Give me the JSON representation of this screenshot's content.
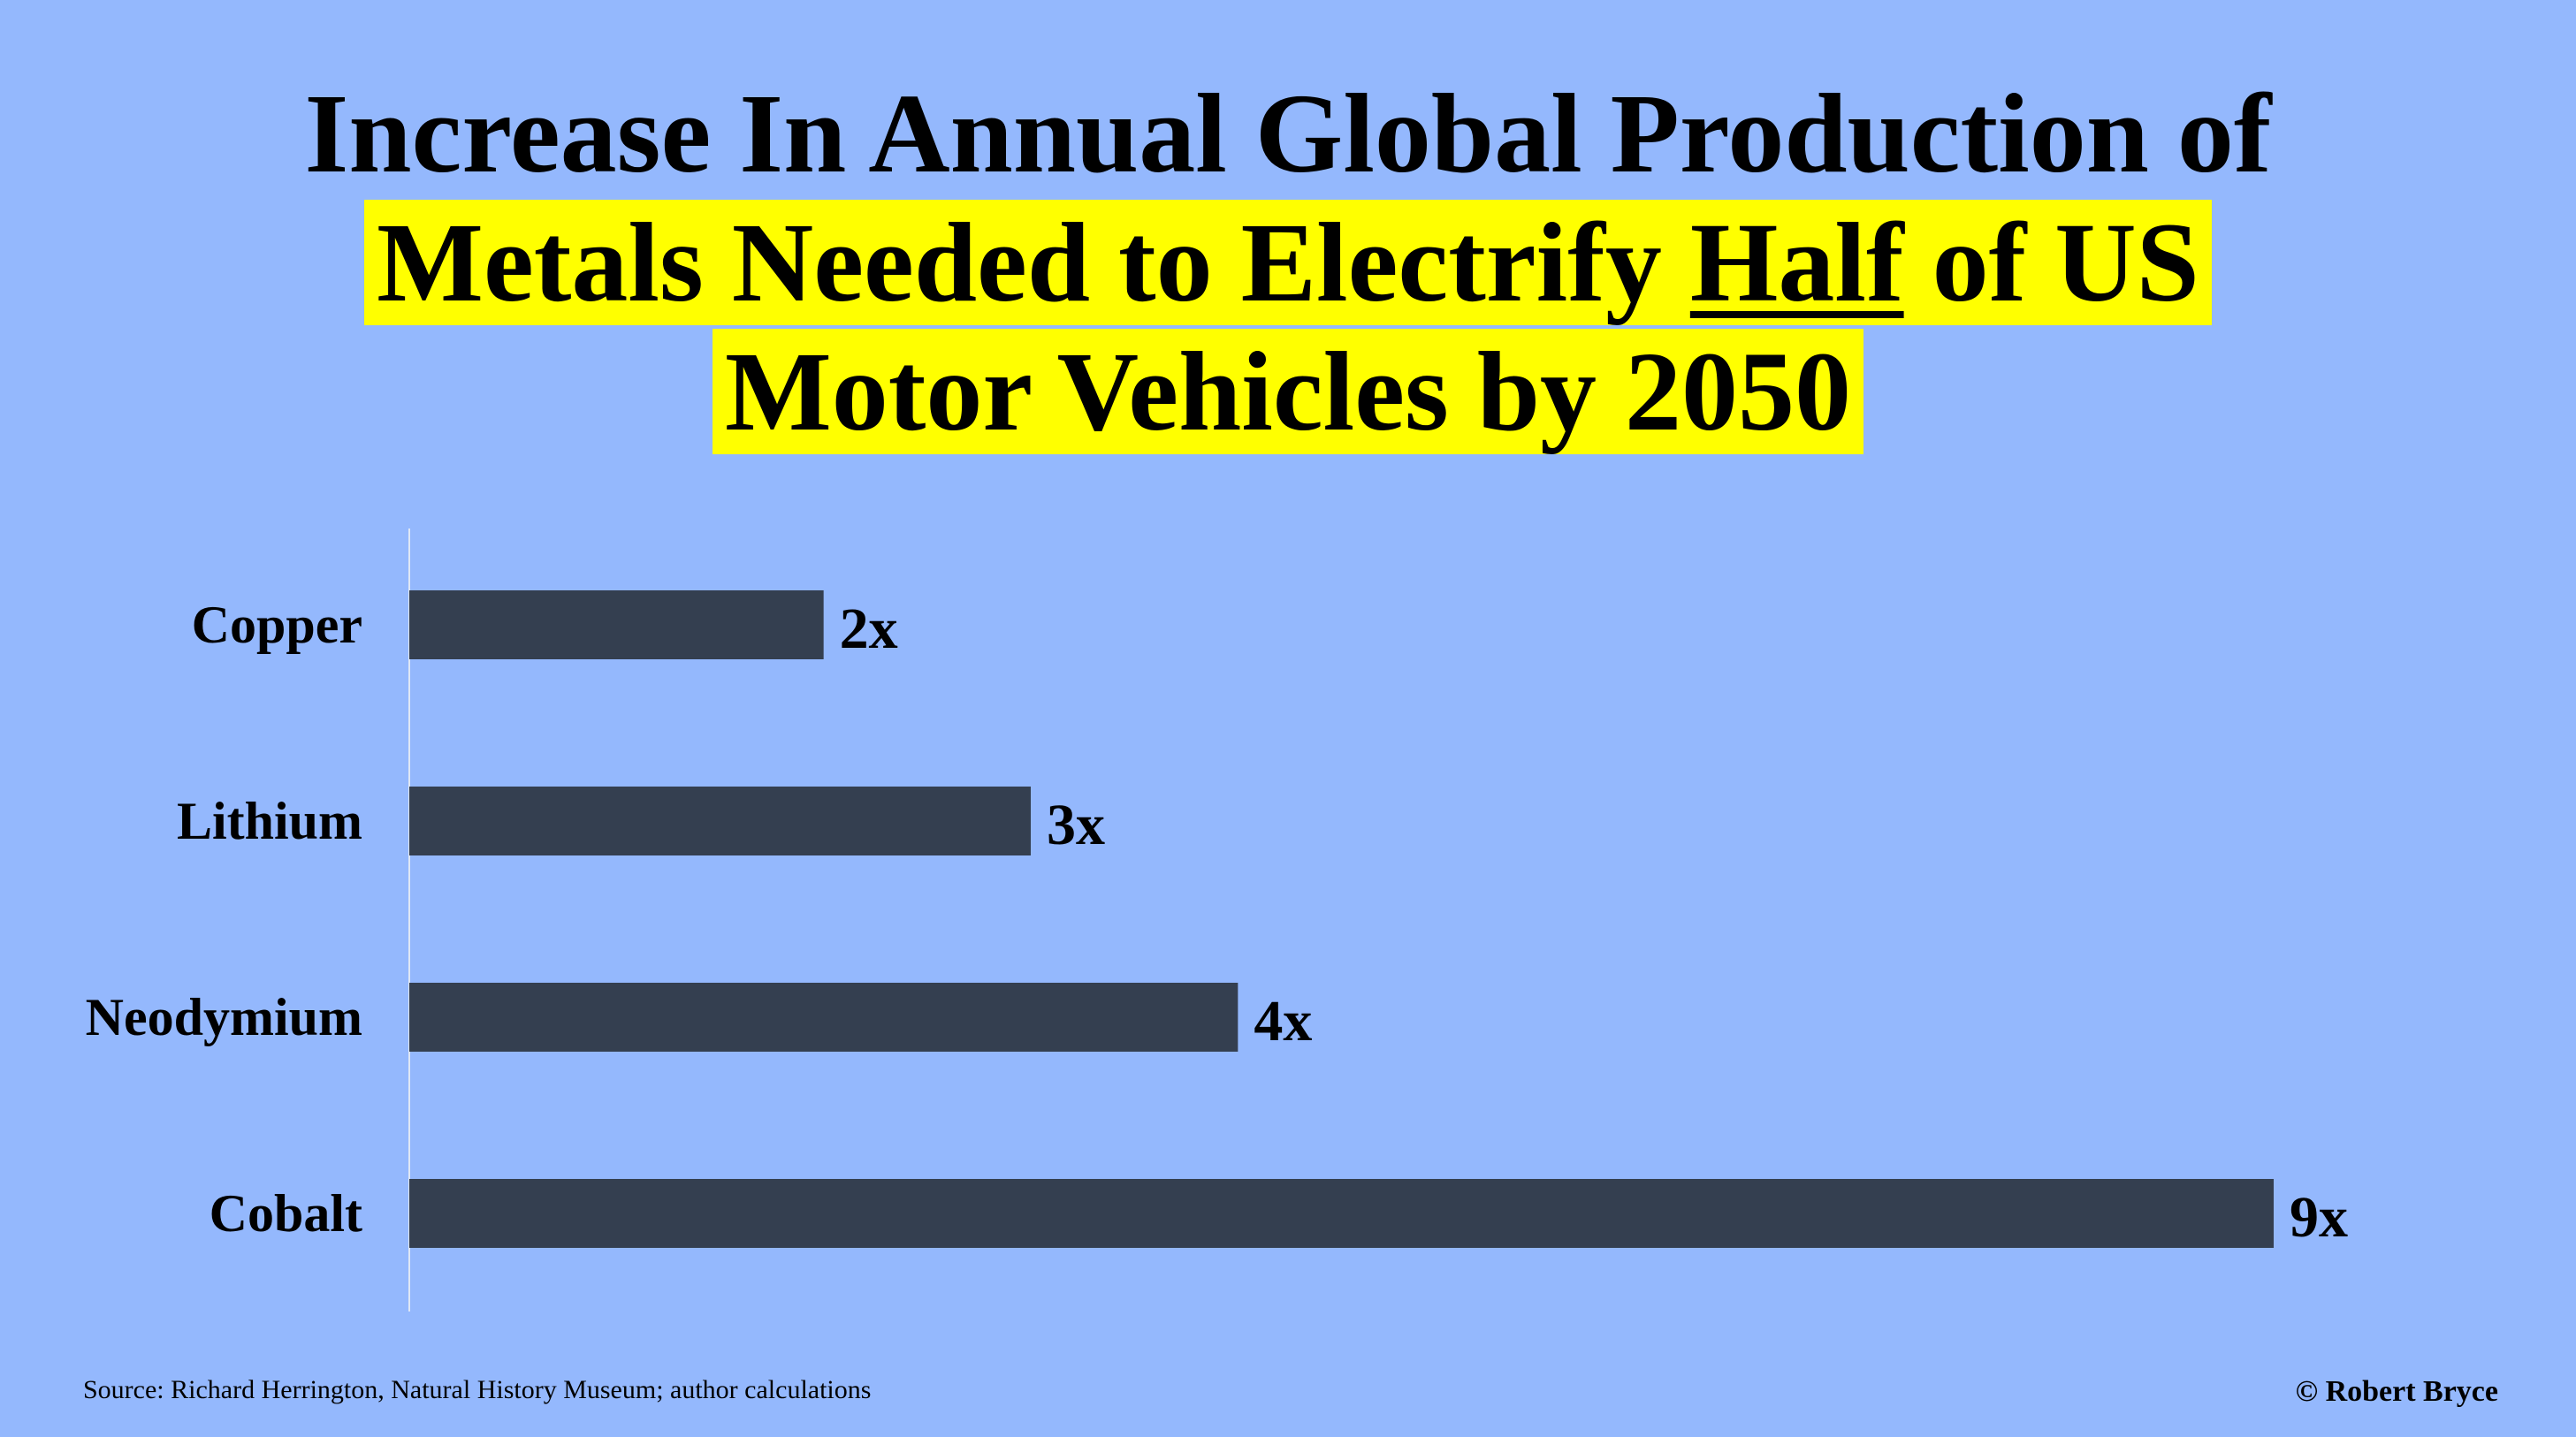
{
  "title": {
    "line1": "Increase In Annual Global Production of",
    "line2_a": "Metals Needed to Electrify ",
    "line2_u": "Half",
    "line2_b": " of US",
    "line3": "Motor Vehicles by 2050"
  },
  "colors": {
    "background": "#94b8fd",
    "bar": "#343f50",
    "highlight": "#ffff00"
  },
  "chart_data": {
    "type": "bar",
    "orientation": "horizontal",
    "categories": [
      "Copper",
      "Lithium",
      "Neodymium",
      "Cobalt"
    ],
    "values": [
      2,
      3,
      4,
      9
    ],
    "value_labels": [
      "2x",
      "3x",
      "4x",
      "9x"
    ],
    "xlim": [
      0,
      9
    ],
    "grid": false,
    "legend": "none"
  },
  "footer": {
    "source": "Source: Richard Herrington, Natural History Museum; author calculations",
    "credit": "© Robert Bryce"
  }
}
